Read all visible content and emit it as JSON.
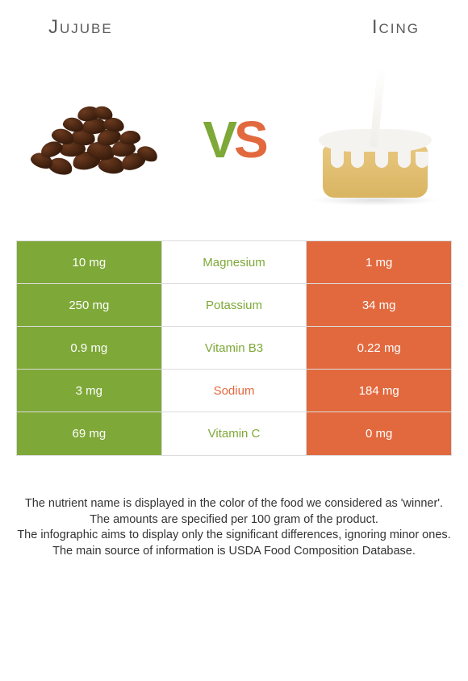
{
  "left_title": "Jujube",
  "right_title": "Icing",
  "vs_v": "V",
  "vs_s": "S",
  "colors": {
    "green": "#7ea838",
    "orange": "#e2693e",
    "mid_bg": "#ffffff",
    "border": "#dcdcdc",
    "text": "#333333"
  },
  "rows": [
    {
      "left": "10 mg",
      "name": "Magnesium",
      "right": "1 mg",
      "winner": "left"
    },
    {
      "left": "250 mg",
      "name": "Potassium",
      "right": "34 mg",
      "winner": "left"
    },
    {
      "left": "0.9 mg",
      "name": "Vitamin B3",
      "right": "0.22 mg",
      "winner": "left"
    },
    {
      "left": "3 mg",
      "name": "Sodium",
      "right": "184 mg",
      "winner": "right"
    },
    {
      "left": "69 mg",
      "name": "Vitamin C",
      "right": "0 mg",
      "winner": "left"
    }
  ],
  "footer_lines": [
    "The nutrient name is displayed in the color of the food we considered as 'winner'.",
    "The amounts are specified per 100 gram of the product.",
    "The infographic aims to display only the significant differences, ignoring minor ones.",
    "The main source of information is USDA Food Composition Database."
  ]
}
